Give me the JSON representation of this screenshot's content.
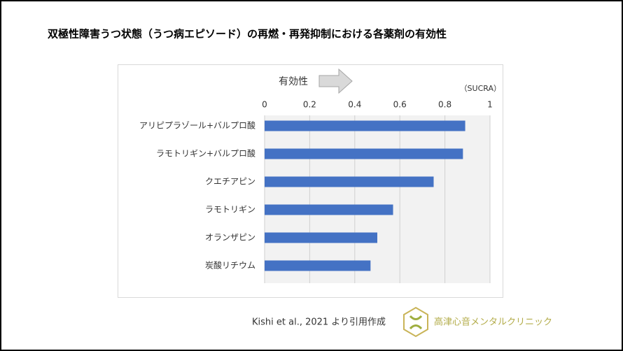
{
  "chart_data": {
    "type": "bar",
    "orientation": "horizontal",
    "title": "双極性障害うつ状態（うつ病エピソード）の再燃・再発抑制における各薬剤の有効性",
    "arrow_label": "有効性",
    "unit_label": "（SUCRA）",
    "categories": [
      "アリピプラゾール+バルプロ酸",
      "ラモトリギン+バルプロ酸",
      "クエチアピン",
      "ラモトリギン",
      "オランザピン",
      "炭酸リチウム"
    ],
    "values": [
      0.89,
      0.88,
      0.75,
      0.57,
      0.5,
      0.47
    ],
    "color": "#4472c4",
    "xlim": [
      0,
      1
    ],
    "xticks": [
      0,
      0.2,
      0.4,
      0.6,
      0.8,
      1
    ],
    "grid": true
  },
  "footer": {
    "source": "Kishi et al., 2021 より引用作成",
    "clinic": "高津心音メンタルクリニック"
  }
}
